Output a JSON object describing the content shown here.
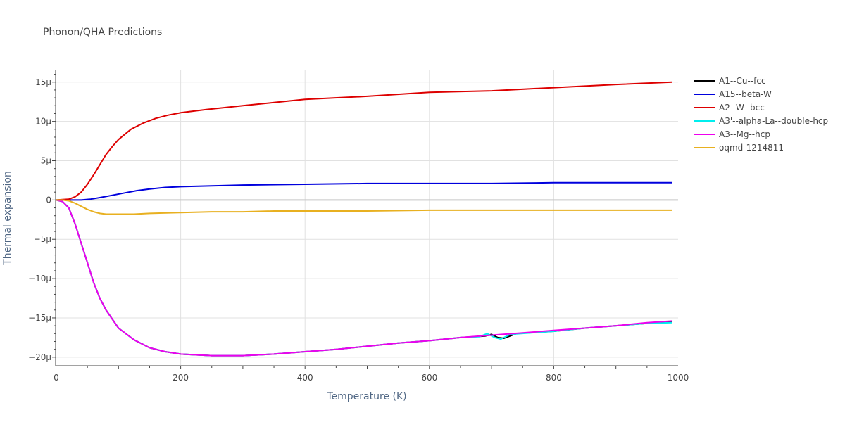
{
  "chart_data": {
    "type": "line",
    "title": "Phonon/QHA Predictions",
    "xlabel": "Temperature (K)",
    "ylabel": "Thermal expansion",
    "xlim": [
      0,
      1000
    ],
    "ylim": [
      -2.1e-05,
      1.65e-05
    ],
    "grid": true,
    "legend_position": "right",
    "x_ticks": [
      {
        "value": 0,
        "label": "0"
      },
      {
        "value": 200,
        "label": "200"
      },
      {
        "value": 400,
        "label": "400"
      },
      {
        "value": 600,
        "label": "600"
      },
      {
        "value": 800,
        "label": "800"
      },
      {
        "value": 1000,
        "label": "1000"
      }
    ],
    "y_ticks": [
      {
        "value": 1.5e-05,
        "label": "15μ"
      },
      {
        "value": 1e-05,
        "label": "10μ"
      },
      {
        "value": 5e-06,
        "label": "5μ"
      },
      {
        "value": 0,
        "label": "0"
      },
      {
        "value": -5e-06,
        "label": "−5μ"
      },
      {
        "value": -1e-05,
        "label": "−10μ"
      },
      {
        "value": -1.5e-05,
        "label": "−15μ"
      },
      {
        "value": -2e-05,
        "label": "−20μ"
      }
    ],
    "series": [
      {
        "name": "A1--Cu--fcc",
        "color": "#000000",
        "x": [
          0,
          10,
          20,
          30,
          40,
          50,
          60,
          70,
          80,
          100,
          125,
          150,
          175,
          200,
          250,
          300,
          350,
          400,
          450,
          500,
          550,
          600,
          650,
          690,
          700,
          710,
          720,
          740,
          800,
          850,
          900,
          950,
          990
        ],
        "y": [
          0,
          -2e-07,
          -1e-06,
          -3e-06,
          -5.5e-06,
          -8e-06,
          -1.05e-05,
          -1.25e-05,
          -1.4e-05,
          -1.63e-05,
          -1.78e-05,
          -1.88e-05,
          -1.93e-05,
          -1.96e-05,
          -1.98e-05,
          -1.98e-05,
          -1.96e-05,
          -1.93e-05,
          -1.9e-05,
          -1.86e-05,
          -1.82e-05,
          -1.79e-05,
          -1.75e-05,
          -1.73e-05,
          -1.71e-05,
          -1.75e-05,
          -1.76e-05,
          -1.7e-05,
          -1.67e-05,
          -1.63e-05,
          -1.6e-05,
          -1.57e-05,
          -1.55e-05
        ]
      },
      {
        "name": "A15--beta-W",
        "color": "#0000dd",
        "x": [
          0,
          20,
          40,
          55,
          70,
          90,
          110,
          130,
          150,
          175,
          200,
          250,
          300,
          400,
          500,
          600,
          700,
          800,
          900,
          990
        ],
        "y": [
          0,
          0,
          0,
          1e-07,
          3e-07,
          6e-07,
          9e-07,
          1.2e-06,
          1.4e-06,
          1.6e-06,
          1.7e-06,
          1.8e-06,
          1.9e-06,
          2e-06,
          2.1e-06,
          2.1e-06,
          2.1e-06,
          2.2e-06,
          2.2e-06,
          2.2e-06
        ]
      },
      {
        "name": "A2--W--bcc",
        "color": "#dd0000",
        "x": [
          0,
          10,
          20,
          30,
          40,
          50,
          60,
          70,
          80,
          90,
          100,
          120,
          140,
          160,
          180,
          200,
          240,
          300,
          350,
          400,
          500,
          600,
          700,
          800,
          900,
          990
        ],
        "y": [
          0,
          5e-08,
          1e-07,
          4e-07,
          1e-06,
          2e-06,
          3.2e-06,
          4.5e-06,
          5.8e-06,
          6.8e-06,
          7.7e-06,
          9e-06,
          9.8e-06,
          1.04e-05,
          1.08e-05,
          1.11e-05,
          1.15e-05,
          1.2e-05,
          1.24e-05,
          1.28e-05,
          1.32e-05,
          1.37e-05,
          1.39e-05,
          1.43e-05,
          1.47e-05,
          1.5e-05
        ]
      },
      {
        "name": "A3'--alpha-La--double-hcp",
        "color": "#00eeee",
        "x": [
          0,
          10,
          20,
          30,
          40,
          50,
          60,
          70,
          80,
          100,
          125,
          150,
          175,
          200,
          250,
          300,
          350,
          400,
          450,
          500,
          550,
          600,
          650,
          680,
          693,
          705,
          715,
          730,
          800,
          850,
          900,
          950,
          990
        ],
        "y": [
          0,
          -2e-07,
          -1e-06,
          -3e-06,
          -5.5e-06,
          -8e-06,
          -1.05e-05,
          -1.25e-05,
          -1.4e-05,
          -1.63e-05,
          -1.78e-05,
          -1.88e-05,
          -1.93e-05,
          -1.96e-05,
          -1.98e-05,
          -1.98e-05,
          -1.96e-05,
          -1.93e-05,
          -1.9e-05,
          -1.86e-05,
          -1.82e-05,
          -1.79e-05,
          -1.75e-05,
          -1.74e-05,
          -1.7e-05,
          -1.75e-05,
          -1.77e-05,
          -1.71e-05,
          -1.67e-05,
          -1.63e-05,
          -1.6e-05,
          -1.57e-05,
          -1.56e-05
        ]
      },
      {
        "name": "A3--Mg--hcp",
        "color": "#ee00ee",
        "x": [
          0,
          10,
          20,
          30,
          40,
          50,
          60,
          70,
          80,
          100,
          125,
          150,
          175,
          200,
          250,
          300,
          350,
          400,
          450,
          500,
          550,
          600,
          650,
          700,
          750,
          800,
          850,
          900,
          950,
          990
        ],
        "y": [
          0,
          -2e-07,
          -1e-06,
          -3e-06,
          -5.5e-06,
          -8e-06,
          -1.05e-05,
          -1.25e-05,
          -1.4e-05,
          -1.63e-05,
          -1.78e-05,
          -1.88e-05,
          -1.93e-05,
          -1.96e-05,
          -1.98e-05,
          -1.98e-05,
          -1.96e-05,
          -1.93e-05,
          -1.9e-05,
          -1.86e-05,
          -1.82e-05,
          -1.79e-05,
          -1.75e-05,
          -1.72e-05,
          -1.69e-05,
          -1.66e-05,
          -1.63e-05,
          -1.6e-05,
          -1.56e-05,
          -1.54e-05
        ]
      },
      {
        "name": "oqmd-1214811",
        "color": "#e8b020",
        "x": [
          0,
          10,
          20,
          30,
          40,
          50,
          60,
          70,
          80,
          100,
          125,
          150,
          200,
          250,
          300,
          350,
          400,
          500,
          600,
          700,
          800,
          900,
          990
        ],
        "y": [
          0,
          0,
          -1e-07,
          -4e-07,
          -8e-07,
          -1.2e-06,
          -1.5e-06,
          -1.7e-06,
          -1.8e-06,
          -1.8e-06,
          -1.8e-06,
          -1.7e-06,
          -1.6e-06,
          -1.5e-06,
          -1.5e-06,
          -1.4e-06,
          -1.4e-06,
          -1.4e-06,
          -1.3e-06,
          -1.3e-06,
          -1.3e-06,
          -1.3e-06,
          -1.3e-06
        ]
      }
    ]
  }
}
